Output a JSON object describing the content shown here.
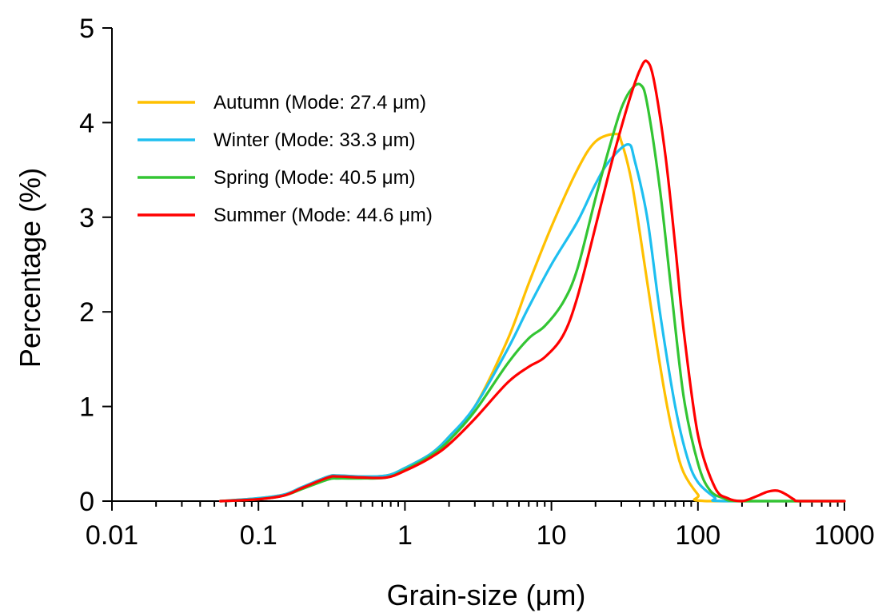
{
  "chart_data": {
    "type": "line",
    "x_scale": "log",
    "xlabel": "Grain-size (μm)",
    "ylabel": "Percentage (%)",
    "xlim": [
      0.01,
      1000
    ],
    "ylim": [
      0,
      5
    ],
    "x_ticks": [
      "0.01",
      "0.1",
      "1",
      "10",
      "100",
      "1000"
    ],
    "y_ticks": [
      "0",
      "1",
      "2",
      "3",
      "4",
      "5"
    ],
    "grid": false,
    "legend_position": "top-left",
    "series": [
      {
        "name": "Autumn (Mode: 27.4 μm)",
        "color": "#FFC000",
        "points": [
          [
            0.055,
            0
          ],
          [
            0.1,
            0.03
          ],
          [
            0.15,
            0.07
          ],
          [
            0.2,
            0.15
          ],
          [
            0.3,
            0.26
          ],
          [
            0.35,
            0.27
          ],
          [
            0.5,
            0.26
          ],
          [
            0.75,
            0.27
          ],
          [
            1,
            0.35
          ],
          [
            1.5,
            0.5
          ],
          [
            2,
            0.68
          ],
          [
            3,
            1.0
          ],
          [
            5,
            1.7
          ],
          [
            7,
            2.3
          ],
          [
            10,
            2.9
          ],
          [
            15,
            3.5
          ],
          [
            20,
            3.8
          ],
          [
            27.4,
            3.88
          ],
          [
            30,
            3.8
          ],
          [
            35,
            3.4
          ],
          [
            40,
            2.85
          ],
          [
            50,
            1.85
          ],
          [
            60,
            1.1
          ],
          [
            70,
            0.6
          ],
          [
            80,
            0.3
          ],
          [
            100,
            0.07
          ],
          [
            115,
            0
          ],
          [
            1000,
            0
          ]
        ]
      },
      {
        "name": "Winter (Mode: 33.3 μm)",
        "color": "#1EBFF0",
        "points": [
          [
            0.055,
            0
          ],
          [
            0.1,
            0.03
          ],
          [
            0.15,
            0.07
          ],
          [
            0.2,
            0.15
          ],
          [
            0.3,
            0.26
          ],
          [
            0.35,
            0.27
          ],
          [
            0.5,
            0.26
          ],
          [
            0.75,
            0.27
          ],
          [
            1,
            0.35
          ],
          [
            1.5,
            0.5
          ],
          [
            2,
            0.68
          ],
          [
            3,
            1.0
          ],
          [
            5,
            1.6
          ],
          [
            7,
            2.05
          ],
          [
            10,
            2.5
          ],
          [
            15,
            2.95
          ],
          [
            20,
            3.35
          ],
          [
            25,
            3.6
          ],
          [
            33.3,
            3.77
          ],
          [
            37,
            3.6
          ],
          [
            45,
            3.0
          ],
          [
            55,
            2.0
          ],
          [
            70,
            1.0
          ],
          [
            85,
            0.45
          ],
          [
            100,
            0.2
          ],
          [
            130,
            0.04
          ],
          [
            150,
            0
          ],
          [
            1000,
            0
          ]
        ]
      },
      {
        "name": "Spring (Mode: 40.5 μm)",
        "color": "#33C533",
        "points": [
          [
            0.055,
            0
          ],
          [
            0.1,
            0.02
          ],
          [
            0.15,
            0.06
          ],
          [
            0.2,
            0.13
          ],
          [
            0.3,
            0.23
          ],
          [
            0.35,
            0.24
          ],
          [
            0.5,
            0.24
          ],
          [
            0.75,
            0.25
          ],
          [
            1,
            0.33
          ],
          [
            1.5,
            0.48
          ],
          [
            2,
            0.64
          ],
          [
            3,
            0.95
          ],
          [
            5,
            1.45
          ],
          [
            7,
            1.72
          ],
          [
            9,
            1.85
          ],
          [
            12,
            2.1
          ],
          [
            15,
            2.45
          ],
          [
            20,
            3.2
          ],
          [
            25,
            3.75
          ],
          [
            30,
            4.15
          ],
          [
            35,
            4.35
          ],
          [
            40.5,
            4.4
          ],
          [
            45,
            4.2
          ],
          [
            55,
            3.3
          ],
          [
            65,
            2.3
          ],
          [
            80,
            1.1
          ],
          [
            100,
            0.4
          ],
          [
            120,
            0.12
          ],
          [
            150,
            0.03
          ],
          [
            200,
            0
          ],
          [
            1000,
            0
          ]
        ]
      },
      {
        "name": "Summer (Mode: 44.6 μm)",
        "color": "#FF0000",
        "points": [
          [
            0.055,
            0
          ],
          [
            0.1,
            0.02
          ],
          [
            0.15,
            0.06
          ],
          [
            0.2,
            0.14
          ],
          [
            0.3,
            0.25
          ],
          [
            0.35,
            0.26
          ],
          [
            0.5,
            0.25
          ],
          [
            0.75,
            0.25
          ],
          [
            1,
            0.32
          ],
          [
            1.5,
            0.46
          ],
          [
            2,
            0.6
          ],
          [
            3,
            0.87
          ],
          [
            5,
            1.25
          ],
          [
            7,
            1.42
          ],
          [
            9,
            1.52
          ],
          [
            12,
            1.75
          ],
          [
            15,
            2.15
          ],
          [
            20,
            2.9
          ],
          [
            25,
            3.5
          ],
          [
            30,
            3.95
          ],
          [
            35,
            4.3
          ],
          [
            40,
            4.55
          ],
          [
            44.6,
            4.65
          ],
          [
            50,
            4.45
          ],
          [
            60,
            3.65
          ],
          [
            70,
            2.7
          ],
          [
            80,
            1.8
          ],
          [
            100,
            0.7
          ],
          [
            130,
            0.15
          ],
          [
            160,
            0.03
          ],
          [
            200,
            0
          ],
          [
            250,
            0.05
          ],
          [
            300,
            0.1
          ],
          [
            350,
            0.11
          ],
          [
            400,
            0.07
          ],
          [
            450,
            0.02
          ],
          [
            500,
            0
          ],
          [
            1000,
            0
          ]
        ]
      }
    ]
  }
}
